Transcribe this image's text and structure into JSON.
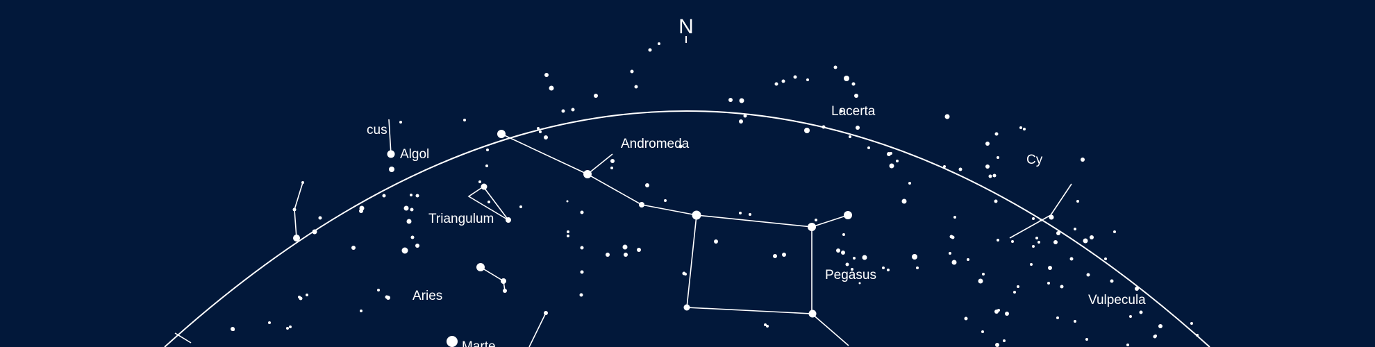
{
  "map": {
    "background": "#02183a",
    "ink": "#ffffff",
    "north_label": "N",
    "labels": {
      "perseus_fragment": "cus",
      "algol": "Algol",
      "andromeda": "Andromeda",
      "lacerta": "Lacerta",
      "cygnus_fragment": "Cy",
      "triangulum": "Triangulum",
      "aries": "Aries",
      "pegasus": "Pegasus",
      "vulpecula": "Vulpecula",
      "marte": "Marte"
    }
  }
}
